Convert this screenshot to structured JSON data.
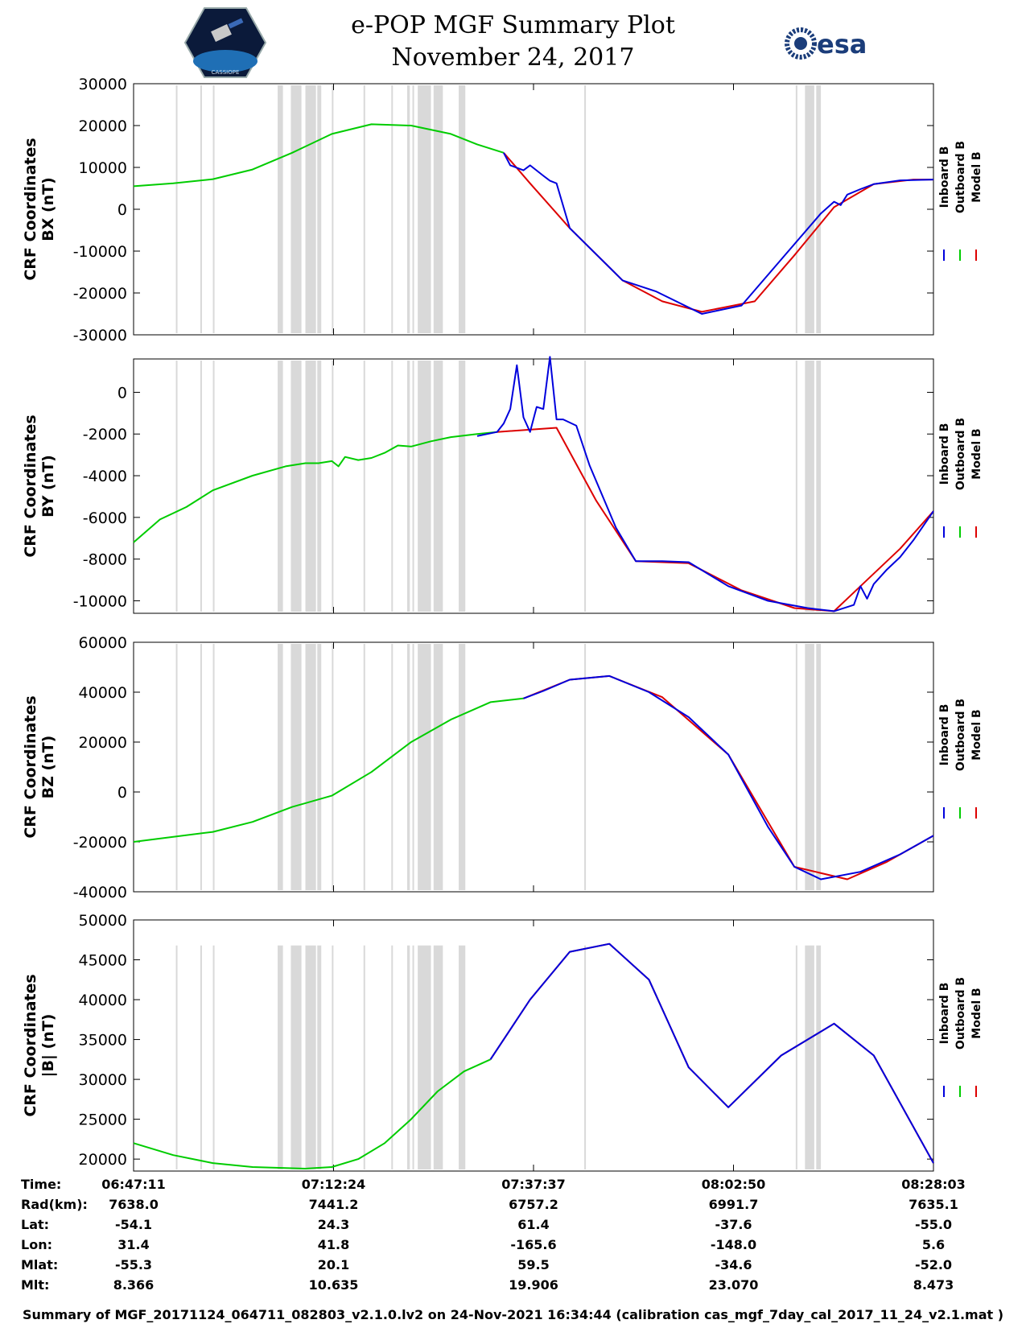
{
  "header": {
    "title": "e-POP MGF Summary Plot",
    "date": "November 24, 2017",
    "esa_logo_text": "esa",
    "cassiope_logo_text": "CASSIOPE"
  },
  "colors": {
    "inboard": "#0000dd",
    "outboard": "#00cc00",
    "model": "#dd0000",
    "shading": "#d9d9d9"
  },
  "legend": [
    "Inboard B",
    "Outboard B",
    "Model B"
  ],
  "chart_data": [
    {
      "type": "line",
      "ylabel": [
        "CRF Coordinates",
        "BX (nT)"
      ],
      "ylim": [
        -30000,
        30000
      ],
      "yticks": [
        30000,
        20000,
        10000,
        0,
        -10000,
        -20000,
        -30000
      ],
      "xlim": [
        0,
        6052
      ],
      "series": [
        {
          "name": "Outboard B",
          "x": [
            0,
            300,
            600,
            900,
            1200,
            1500,
            1800,
            2100,
            2400,
            2600,
            2800
          ],
          "values": [
            5500,
            6200,
            7200,
            9500,
            13500,
            18000,
            20300,
            20000,
            18000,
            15500,
            13500
          ]
        },
        {
          "name": "Model B",
          "x": [
            2800,
            3000,
            3300,
            3700,
            4000,
            4300,
            4700,
            5000,
            5300,
            5600,
            5900,
            6052
          ],
          "values": [
            13500,
            6200,
            -4500,
            -17000,
            -22000,
            -24500,
            -22000,
            -11000,
            500,
            6000,
            7100,
            7100
          ]
        },
        {
          "name": "Inboard B",
          "x": [
            2800,
            2850,
            2950,
            3000,
            3100,
            3150,
            3200,
            3300,
            3700,
            3950,
            4300,
            4600,
            4900,
            5200,
            5300,
            5350,
            5400,
            5500,
            5600,
            5800,
            6052
          ],
          "values": [
            13500,
            10500,
            9300,
            10500,
            8000,
            6800,
            6200,
            -4500,
            -17000,
            -19600,
            -25000,
            -23000,
            -12000,
            -1000,
            1800,
            1000,
            3500,
            4800,
            6000,
            6900,
            7100
          ]
        }
      ]
    },
    {
      "type": "line",
      "ylabel": [
        "CRF Coordinates",
        "BY (nT)"
      ],
      "ylim": [
        -10600,
        1600
      ],
      "yticks": [
        0,
        -2000,
        -4000,
        -6000,
        -8000,
        -10000
      ],
      "xlim": [
        0,
        6052
      ],
      "series": [
        {
          "name": "Outboard B",
          "x": [
            0,
            200,
            400,
            600,
            900,
            1150,
            1300,
            1400,
            1500,
            1550,
            1600,
            1700,
            1800,
            1900,
            2000,
            2100,
            2250,
            2400,
            2600,
            2750
          ],
          "values": [
            -7200,
            -6100,
            -5500,
            -4700,
            -4000,
            -3550,
            -3400,
            -3400,
            -3300,
            -3550,
            -3100,
            -3250,
            -3150,
            -2900,
            -2550,
            -2600,
            -2350,
            -2150,
            -2000,
            -1900
          ]
        },
        {
          "name": "Model B",
          "x": [
            2750,
            3200,
            3500,
            3800,
            4200,
            4600,
            5000,
            5300,
            5500,
            5800,
            6052
          ],
          "values": [
            -1900,
            -1700,
            -5200,
            -8100,
            -8200,
            -9500,
            -10350,
            -10500,
            -9300,
            -7500,
            -5700
          ]
        },
        {
          "name": "Inboard B",
          "x": [
            2600,
            2750,
            2800,
            2850,
            2900,
            2950,
            3000,
            3050,
            3100,
            3150,
            3200,
            3250,
            3350,
            3450,
            3650,
            3800,
            4000,
            4200,
            4500,
            4800,
            5100,
            5300,
            5400,
            5450,
            5500,
            5550,
            5600,
            5700,
            5800,
            5900,
            6052
          ],
          "values": [
            -2100,
            -1900,
            -1500,
            -800,
            1300,
            -1200,
            -1900,
            -700,
            -800,
            1700,
            -1300,
            -1300,
            -1600,
            -3500,
            -6500,
            -8100,
            -8100,
            -8150,
            -9300,
            -10000,
            -10350,
            -10500,
            -10300,
            -10200,
            -9300,
            -9900,
            -9200,
            -8500,
            -7900,
            -7100,
            -5700
          ]
        }
      ]
    },
    {
      "type": "line",
      "ylabel": [
        "CRF Coordinates",
        "BZ (nT)"
      ],
      "ylim": [
        -40000,
        60000
      ],
      "yticks": [
        60000,
        40000,
        20000,
        0,
        -20000,
        -40000
      ],
      "xlim": [
        0,
        6052
      ],
      "series": [
        {
          "name": "Outboard B",
          "x": [
            0,
            300,
            600,
            900,
            1200,
            1500,
            1800,
            2100,
            2400,
            2700,
            2950
          ],
          "values": [
            -20000,
            -18000,
            -16000,
            -12000,
            -6000,
            -1500,
            8000,
            20000,
            29000,
            36000,
            37500
          ]
        },
        {
          "name": "Model B",
          "x": [
            2950,
            3300,
            3600,
            4000,
            4500,
            5000,
            5400,
            5700,
            6052
          ],
          "values": [
            37500,
            45000,
            46500,
            38000,
            15000,
            -30000,
            -35000,
            -28000,
            -17500
          ]
        },
        {
          "name": "Inboard B",
          "x": [
            2950,
            3100,
            3300,
            3600,
            3900,
            4200,
            4500,
            4800,
            5000,
            5200,
            5500,
            5800,
            6052
          ],
          "values": [
            37500,
            40500,
            45000,
            46500,
            40000,
            30000,
            15000,
            -14000,
            -30000,
            -35000,
            -32000,
            -25000,
            -17500
          ]
        }
      ]
    },
    {
      "type": "line",
      "ylabel": [
        "CRF Coordinates",
        "|B| (nT)"
      ],
      "ylim": [
        18500,
        50000
      ],
      "yticks": [
        50000,
        45000,
        40000,
        35000,
        30000,
        25000,
        20000
      ],
      "xlim": [
        0,
        6052
      ],
      "series": [
        {
          "name": "Outboard B",
          "x": [
            0,
            300,
            600,
            900,
            1100,
            1300,
            1500,
            1700,
            1900,
            2100,
            2300,
            2500,
            2700
          ],
          "values": [
            22000,
            20500,
            19500,
            19000,
            18900,
            18800,
            19000,
            20000,
            22000,
            25000,
            28500,
            31000,
            32500
          ]
        },
        {
          "name": "Model B",
          "x": [
            2700,
            3000,
            3300,
            3600,
            3900,
            4200,
            4500,
            4900,
            5300,
            5600,
            6052
          ],
          "values": [
            32500,
            40000,
            46000,
            47000,
            42500,
            31500,
            26500,
            33000,
            37000,
            33000,
            19500
          ]
        },
        {
          "name": "Inboard B",
          "x": [
            2700,
            3000,
            3300,
            3600,
            3900,
            4200,
            4500,
            4900,
            5300,
            5600,
            6052
          ],
          "values": [
            32500,
            40000,
            46000,
            47000,
            42500,
            31500,
            26500,
            33000,
            37000,
            33000,
            19500
          ]
        }
      ]
    }
  ],
  "shading_intervals": [
    [
      320,
      330
    ],
    [
      505,
      515
    ],
    [
      600,
      610
    ],
    [
      1090,
      1130
    ],
    [
      1190,
      1270
    ],
    [
      1300,
      1380
    ],
    [
      1390,
      1420
    ],
    [
      1500,
      1510
    ],
    [
      1740,
      1750
    ],
    [
      1950,
      1960
    ],
    [
      2070,
      2090
    ],
    [
      2110,
      2120
    ],
    [
      2150,
      2250
    ],
    [
      2270,
      2340
    ],
    [
      2460,
      2510
    ],
    [
      3410,
      3420
    ],
    [
      5010,
      5020
    ],
    [
      5080,
      5150
    ],
    [
      5165,
      5200
    ]
  ],
  "info": {
    "rows": [
      {
        "label": "Time:",
        "values": [
          "06:47:11",
          "07:12:24",
          "07:37:37",
          "08:02:50",
          "08:28:03"
        ]
      },
      {
        "label": "Rad(km):",
        "values": [
          "7638.0",
          "7441.2",
          "6757.2",
          "6991.7",
          "7635.1"
        ]
      },
      {
        "label": "Lat:",
        "values": [
          "-54.1",
          "24.3",
          "61.4",
          "-37.6",
          "-55.0"
        ]
      },
      {
        "label": "Lon:",
        "values": [
          "31.4",
          "41.8",
          "-165.6",
          "-148.0",
          "5.6"
        ]
      },
      {
        "label": "Mlat:",
        "values": [
          "-55.3",
          "20.1",
          "59.5",
          "-34.6",
          "-52.0"
        ]
      },
      {
        "label": "Mlt:",
        "values": [
          "8.366",
          "10.635",
          "19.906",
          "23.070",
          "8.473"
        ]
      }
    ]
  },
  "footer": "Summary of MGF_20171124_064711_082803_v2.1.0.lv2 on 24-Nov-2021 16:34:44 (calibration cas_mgf_7day_cal_2017_11_24_v2.1.mat )"
}
